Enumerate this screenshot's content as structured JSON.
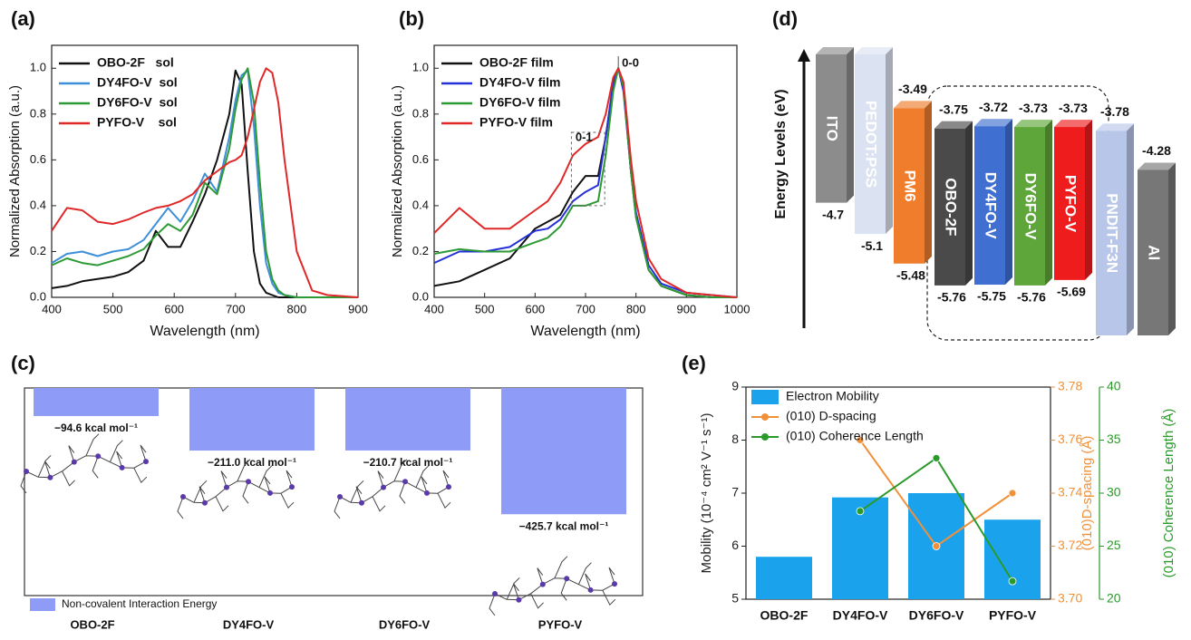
{
  "chart_data": [
    {
      "type": "line",
      "panel_label": "(a)",
      "xlabel": "Wavelength (nm)",
      "ylabel": "Normalized Absorption (a.u.)",
      "x": [
        400,
        425,
        450,
        475,
        500,
        525,
        550,
        570,
        590,
        610,
        630,
        650,
        670,
        690,
        700,
        710,
        720,
        730,
        740,
        750,
        760,
        770,
        780,
        800,
        825,
        850,
        900
      ],
      "series": [
        {
          "name": "OBO-2F   sol",
          "color": "#111111",
          "values": [
            0.04,
            0.05,
            0.07,
            0.08,
            0.09,
            0.11,
            0.16,
            0.29,
            0.22,
            0.22,
            0.33,
            0.45,
            0.6,
            0.8,
            0.99,
            0.93,
            0.55,
            0.2,
            0.06,
            0.02,
            0.01,
            0,
            0,
            0,
            0,
            0,
            0
          ]
        },
        {
          "name": "DY4FO-V  sol",
          "color": "#3f8fd8",
          "values": [
            0.15,
            0.19,
            0.2,
            0.18,
            0.2,
            0.21,
            0.25,
            0.32,
            0.39,
            0.33,
            0.42,
            0.54,
            0.46,
            0.7,
            0.86,
            0.97,
            0.99,
            0.75,
            0.4,
            0.15,
            0.06,
            0.02,
            0.01,
            0,
            0,
            0,
            0
          ]
        },
        {
          "name": "DY6FO-V  sol",
          "color": "#2e9a35",
          "values": [
            0.14,
            0.17,
            0.15,
            0.14,
            0.16,
            0.18,
            0.21,
            0.27,
            0.32,
            0.29,
            0.36,
            0.5,
            0.45,
            0.65,
            0.82,
            0.95,
            1.0,
            0.85,
            0.5,
            0.2,
            0.08,
            0.03,
            0.01,
            0,
            0,
            0,
            0
          ]
        },
        {
          "name": "PYFO-V    sol",
          "color": "#e02828",
          "values": [
            0.29,
            0.39,
            0.38,
            0.33,
            0.32,
            0.34,
            0.37,
            0.39,
            0.4,
            0.42,
            0.45,
            0.51,
            0.55,
            0.59,
            0.6,
            0.62,
            0.7,
            0.82,
            0.94,
            1.0,
            0.98,
            0.85,
            0.6,
            0.2,
            0.03,
            0.01,
            0
          ]
        }
      ],
      "xlim": [
        400,
        900
      ],
      "xticks": [
        400,
        500,
        600,
        700,
        800,
        900
      ],
      "ylim": [
        0,
        1.1
      ],
      "yticks": [
        {
          "value": 0,
          "label": "0.0"
        },
        0.2,
        0.4,
        0.6,
        0.8,
        {
          "value": 1,
          "label": "1.0"
        }
      ]
    },
    {
      "type": "line",
      "panel_label": "(b)",
      "xlabel": "Wavelength (nm)",
      "ylabel": "Normalized Absorption (a.u.)",
      "x": [
        400,
        450,
        500,
        550,
        600,
        625,
        650,
        675,
        700,
        725,
        740,
        755,
        765,
        775,
        790,
        800,
        825,
        850,
        900,
        950,
        1000
      ],
      "series": [
        {
          "name": "OBO-2F film",
          "color": "#111111",
          "values": [
            0.05,
            0.07,
            0.12,
            0.17,
            0.3,
            0.33,
            0.36,
            0.46,
            0.53,
            0.53,
            0.7,
            0.93,
            1.0,
            0.92,
            0.55,
            0.35,
            0.12,
            0.05,
            0.01,
            0,
            0
          ]
        },
        {
          "name": "DY4FO-V film",
          "color": "#2430d8",
          "values": [
            0.15,
            0.2,
            0.2,
            0.22,
            0.29,
            0.3,
            0.34,
            0.42,
            0.46,
            0.49,
            0.7,
            0.94,
            1.0,
            0.9,
            0.55,
            0.37,
            0.14,
            0.06,
            0.02,
            0.01,
            0
          ]
        },
        {
          "name": "DY6FO-V film",
          "color": "#2e9a35",
          "values": [
            0.19,
            0.21,
            0.2,
            0.2,
            0.24,
            0.26,
            0.31,
            0.4,
            0.4,
            0.42,
            0.62,
            0.9,
            1.0,
            0.92,
            0.55,
            0.35,
            0.12,
            0.05,
            0.01,
            0,
            0
          ]
        },
        {
          "name": "PYFO-V film",
          "color": "#e02828",
          "values": [
            0.28,
            0.39,
            0.3,
            0.3,
            0.38,
            0.42,
            0.5,
            0.62,
            0.67,
            0.7,
            0.8,
            0.96,
            1.0,
            0.94,
            0.6,
            0.42,
            0.17,
            0.08,
            0.02,
            0.01,
            0
          ]
        }
      ],
      "annotations": [
        "0-0",
        "0-1"
      ],
      "xlim": [
        400,
        1000
      ],
      "xticks": [
        400,
        500,
        600,
        700,
        800,
        900,
        1000
      ],
      "ylim": [
        0,
        1.1
      ],
      "yticks": [
        {
          "value": 0,
          "label": "0.0"
        },
        0.2,
        0.4,
        0.6,
        0.8,
        {
          "value": 1,
          "label": "1.0"
        }
      ]
    },
    {
      "type": "bar",
      "panel_label": "(c)",
      "categories": [
        "OBO-2F",
        "DY4FO-V",
        "DY6FO-V",
        "PYFO-V"
      ],
      "values": [
        -94.6,
        -211.0,
        -210.7,
        -425.7
      ],
      "value_labels": [
        "−94.6 kcal mol⁻¹",
        "−211.0 kcal mol⁻¹",
        "−210.7 kcal mol⁻¹",
        "−425.7 kcal mol⁻¹"
      ],
      "color": "#8f9cf7",
      "legend": "Non-covalent Interaction Energy",
      "ylim": [
        -700,
        0
      ]
    },
    {
      "type": "energy",
      "panel_label": "(d)",
      "ylabel": "Energy Levels (eV)",
      "ylim": [
        -6.4,
        -2.8
      ],
      "bars": [
        {
          "label": "ITO",
          "color": "#8c8c8c",
          "bottom": -4.7
        },
        {
          "label": "PEDOT:PSS",
          "color": "#dbe2f1",
          "bottom": -5.1
        },
        {
          "label": "PM6",
          "color": "#ef7d2c",
          "top": -3.49,
          "bottom": -5.48
        },
        {
          "label": "OBO-2F",
          "color": "#4a4a4a",
          "top": -3.75,
          "bottom": -5.76
        },
        {
          "label": "DY4FO-V",
          "color": "#3f6fd0",
          "top": -3.72,
          "bottom": -5.75
        },
        {
          "label": "DY6FO-V",
          "color": "#5ea63a",
          "top": -3.73,
          "bottom": -5.76
        },
        {
          "label": "PYFO-V",
          "color": "#ee1c1c",
          "top": -3.73,
          "bottom": -5.69
        },
        {
          "label": "PNDIT-F3N",
          "color": "#b8c6ea",
          "top": -3.78
        },
        {
          "label": "Al",
          "color": "#777777",
          "top": -4.28
        }
      ]
    },
    {
      "type": "combo",
      "panel_label": "(e)",
      "categories": [
        "OBO-2F",
        "DY4FO-V",
        "DY6FO-V",
        "PYFO-V"
      ],
      "ylabel": "Mobility (10⁻⁴ cm² V⁻¹ s⁻¹)",
      "y2label": "(010)D-spacing (Å)",
      "y3label": "(010) Coherence Length (Å)",
      "series": [
        {
          "name": "Electron Mobility",
          "type": "bar",
          "color": "#1aa3ec",
          "values": [
            5.8,
            6.92,
            7.0,
            6.5
          ]
        },
        {
          "name": "(010) D-spacing",
          "type": "line",
          "color": "#f0913a",
          "axis": "y2",
          "values": [
            null,
            3.76,
            3.72,
            3.74
          ]
        },
        {
          "name": "(010) Coherence Length",
          "type": "line",
          "color": "#2a9a2a",
          "axis": "y3",
          "values": [
            null,
            28.3,
            33.3,
            21.7
          ]
        }
      ],
      "ylim": [
        5,
        9
      ],
      "yticks": [
        5,
        6,
        7,
        8,
        9
      ],
      "y2lim": [
        3.7,
        3.78
      ],
      "y2ticks": [
        {
          "value": 3.7,
          "label": "3.70"
        },
        3.72,
        3.74,
        3.76,
        3.78
      ],
      "y3lim": [
        20,
        40
      ],
      "y3ticks": [
        20,
        25,
        30,
        35,
        40
      ]
    }
  ]
}
